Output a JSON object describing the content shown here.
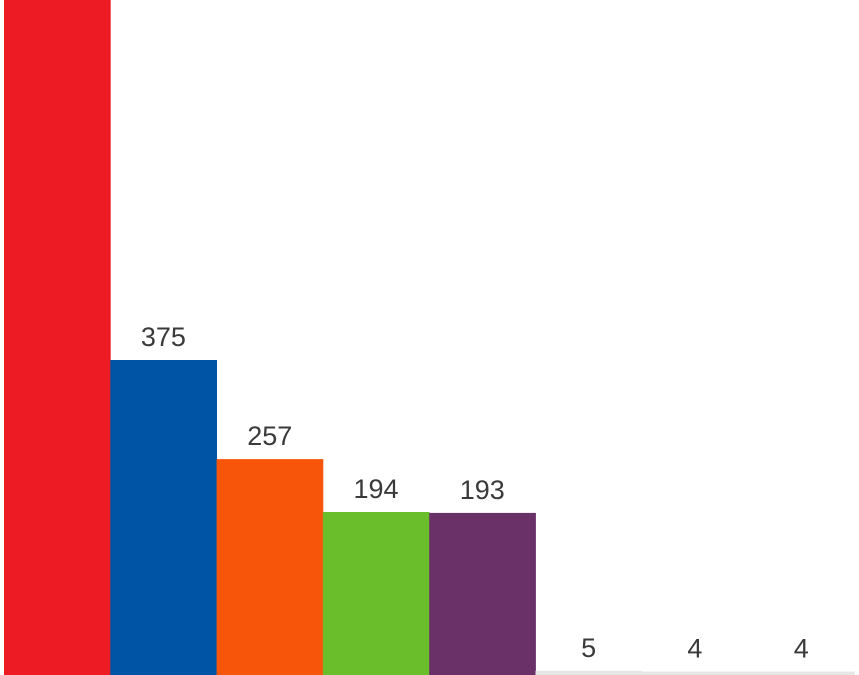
{
  "chart_data": {
    "type": "bar",
    "values": [
      null,
      375,
      257,
      194,
      193,
      5,
      4,
      4
    ],
    "value_labels": [
      "",
      "375",
      "257",
      "194",
      "193",
      "5",
      "4",
      "4"
    ],
    "colors": [
      "#ED1C24",
      "#0054A6",
      "#F7560A",
      "#6ABD2B",
      "#6A3169",
      "#E6E6E6",
      "#E6E6E6",
      "#E6E6E6"
    ],
    "xlabel": "",
    "ylabel": "",
    "grid": false,
    "legend": "none"
  }
}
